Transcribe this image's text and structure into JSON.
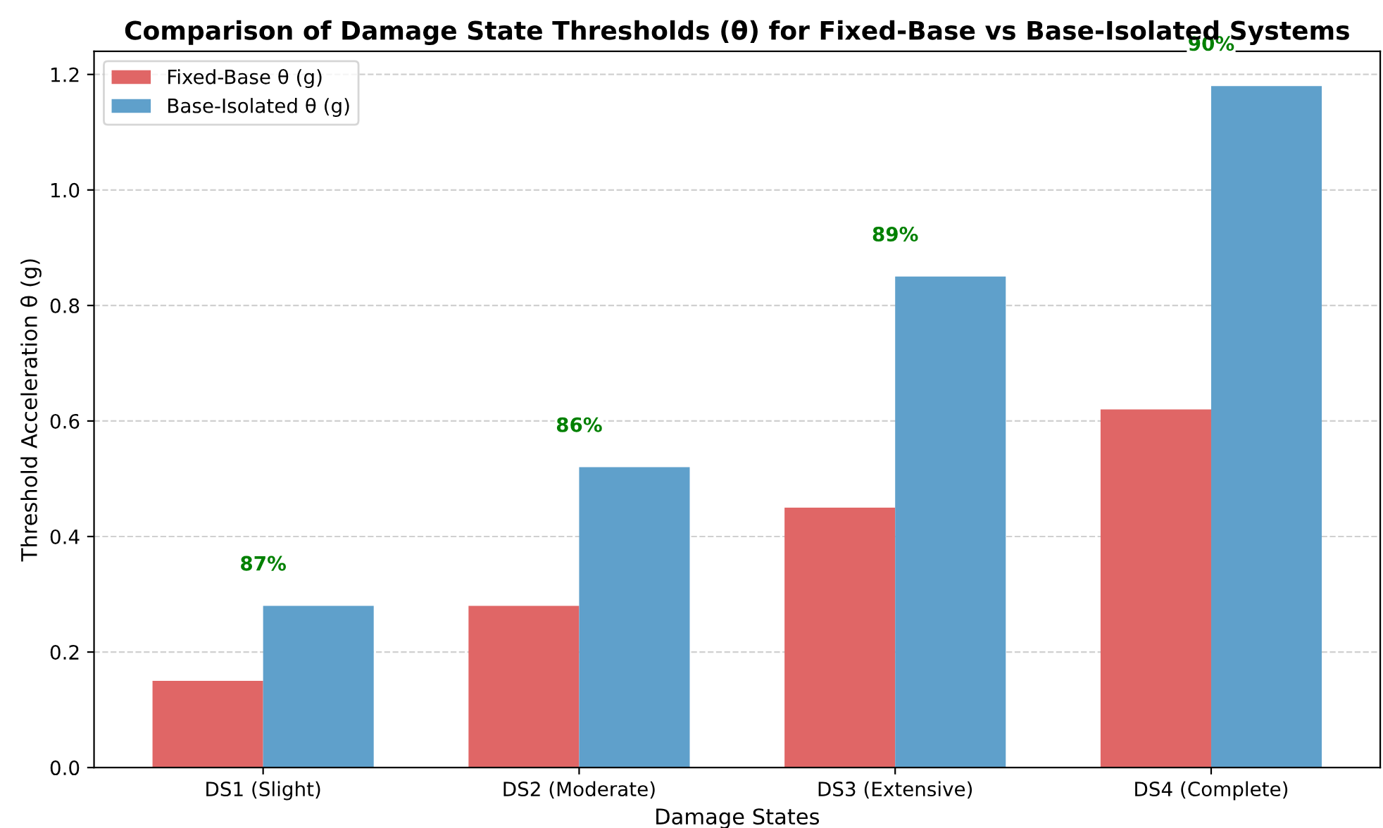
{
  "chart_data": {
    "type": "bar",
    "title": "Comparison of Damage State Thresholds (θ) for Fixed-Base vs Base-Isolated Systems",
    "xlabel": "Damage States",
    "ylabel": "Threshold Acceleration θ (g)",
    "categories": [
      "DS1 (Slight)",
      "DS2 (Moderate)",
      "DS3 (Extensive)",
      "DS4 (Complete)"
    ],
    "series": [
      {
        "name": "Fixed-Base θ (g)",
        "color": "#e06666",
        "values": [
          0.15,
          0.28,
          0.45,
          0.62
        ]
      },
      {
        "name": "Base-Isolated θ (g)",
        "color": "#5fa0cb",
        "values": [
          0.28,
          0.52,
          0.85,
          1.18
        ]
      }
    ],
    "annotations": [
      "87%",
      "86%",
      "89%",
      "90%"
    ],
    "ylim": [
      0,
      1.24
    ],
    "yticks": [
      {
        "value": 0,
        "label": "0.0"
      },
      0.2,
      0.4,
      0.6,
      0.8,
      {
        "value": 1,
        "label": "1.0"
      },
      1.2
    ],
    "grid": "y",
    "legend": "top left"
  }
}
